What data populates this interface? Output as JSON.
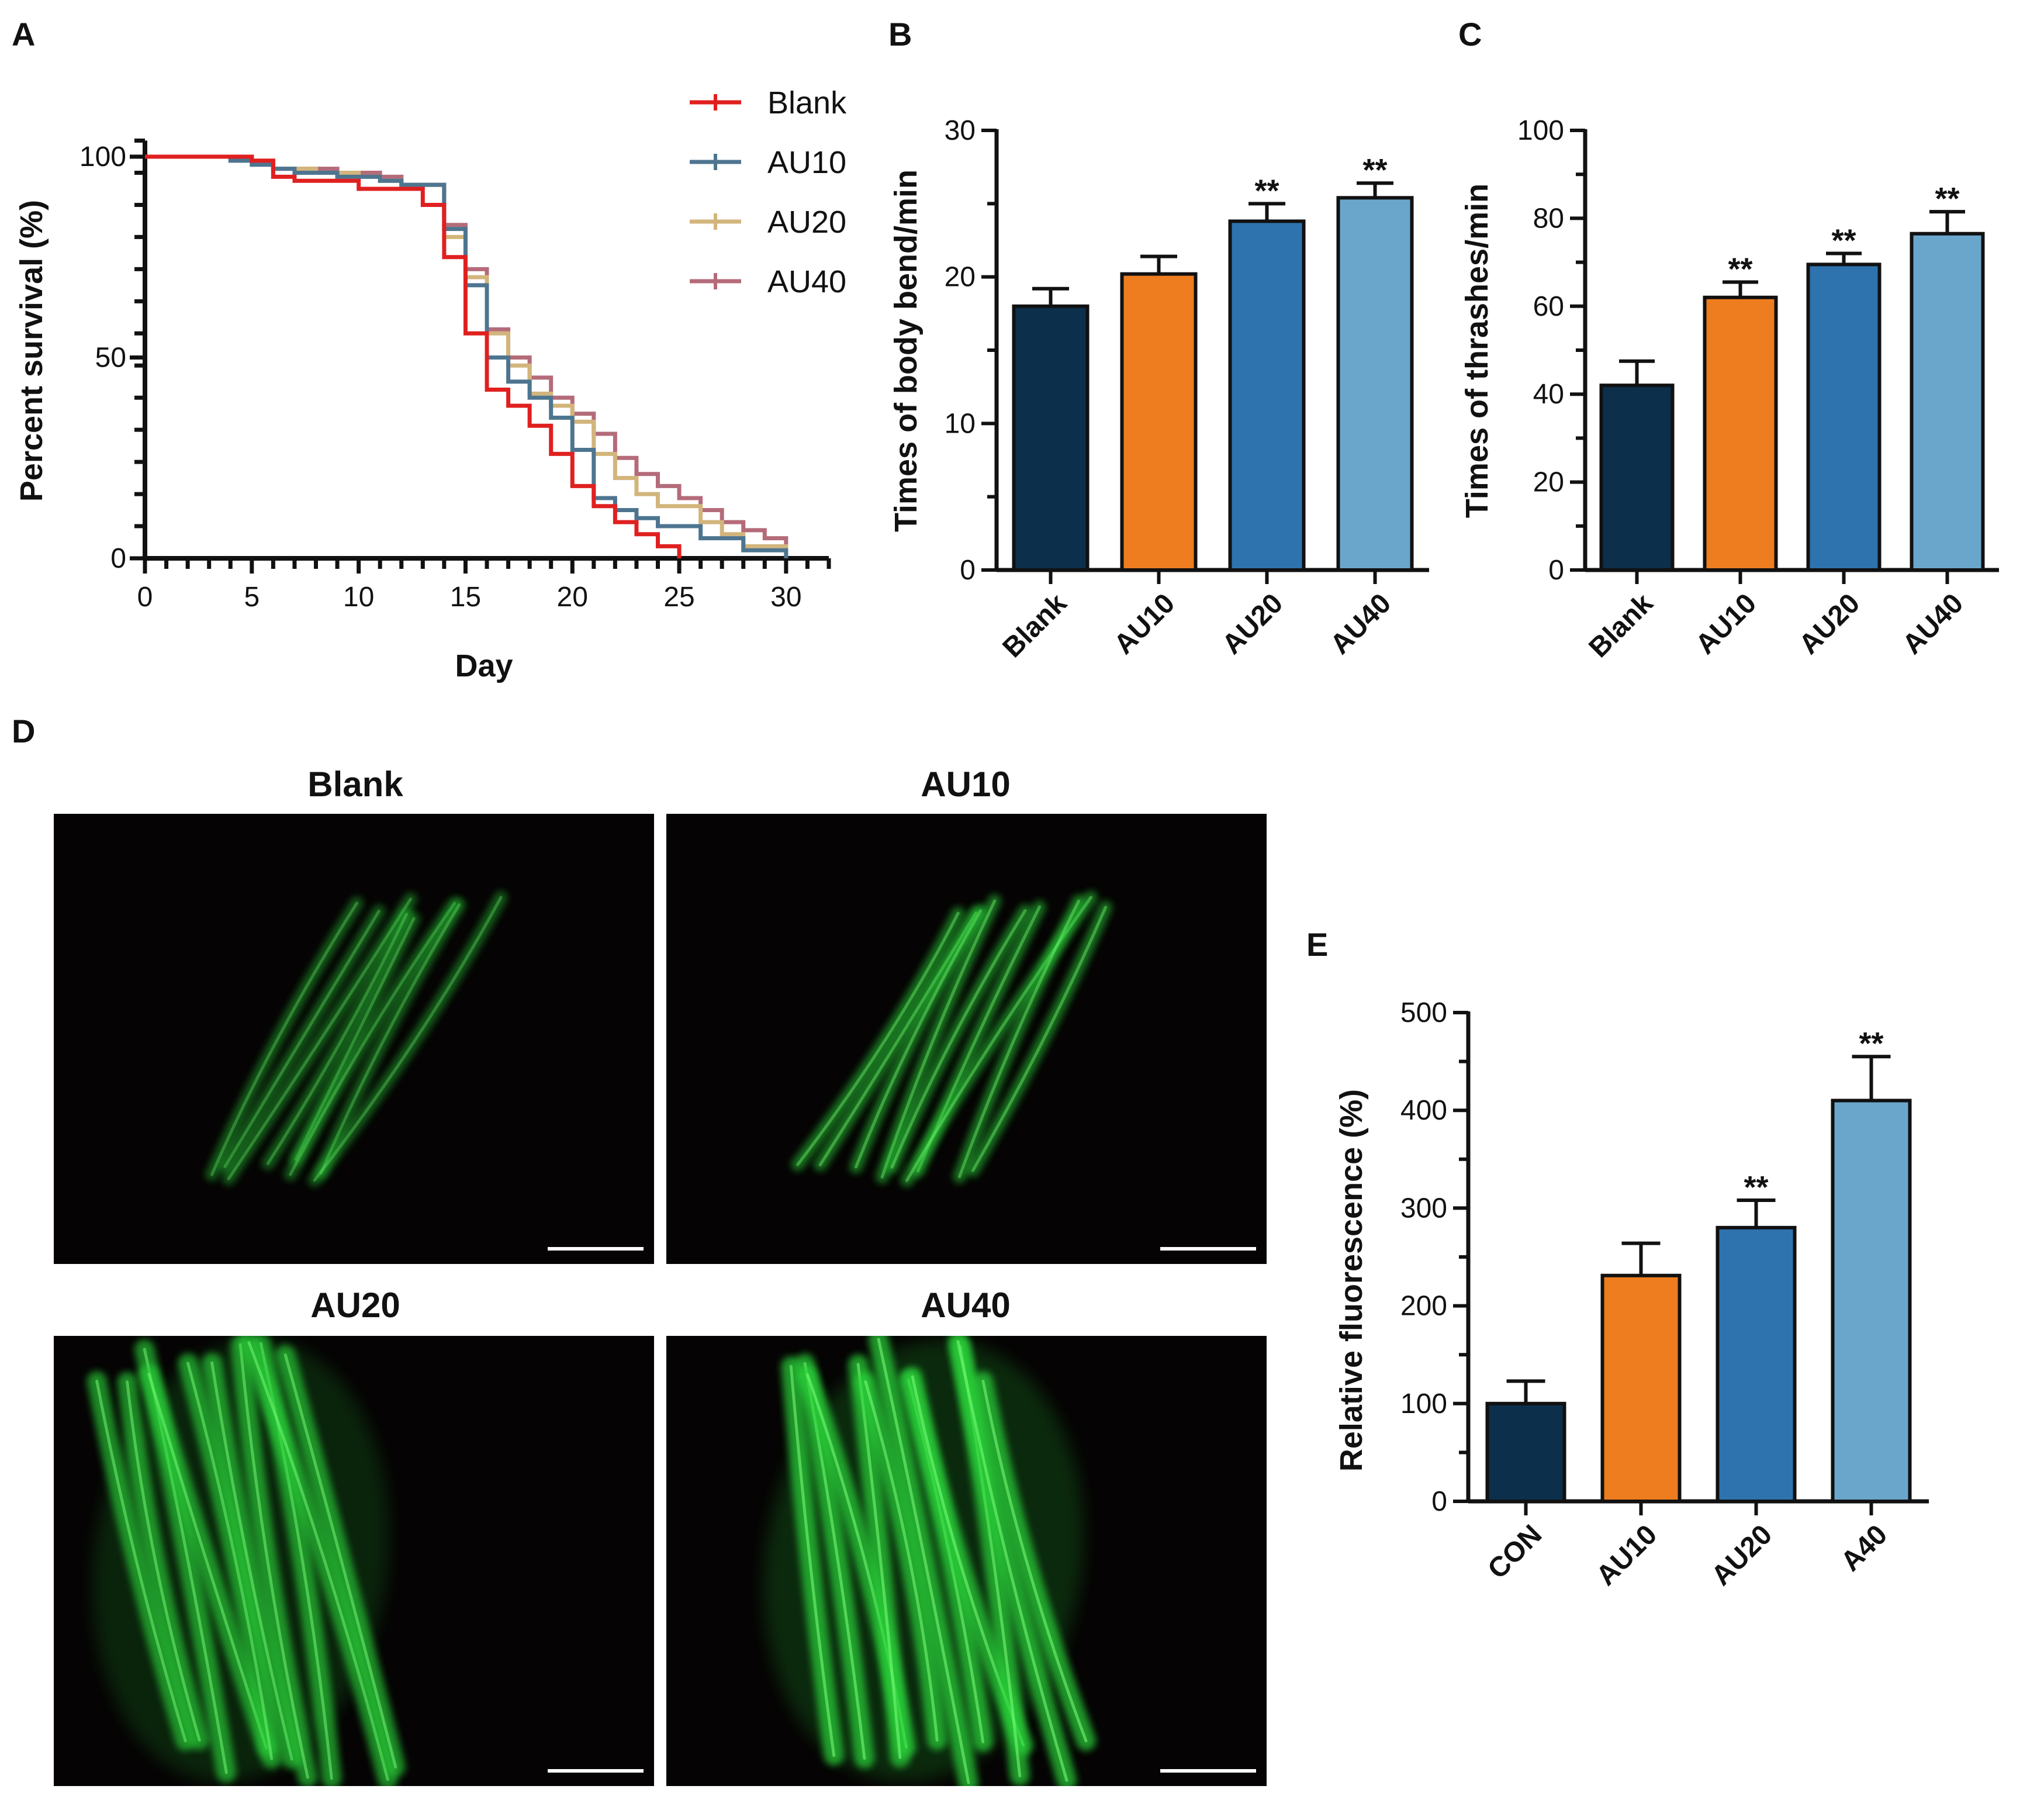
{
  "panels": {
    "a": "A",
    "b": "B",
    "c": "C",
    "d": "D",
    "e": "E"
  },
  "colors": {
    "blank_line": "#e02020",
    "au10_line": "#4e7590",
    "au20_line": "#d2b57c",
    "au40_line": "#b46b7a",
    "bar_dark": "#0c2f4b",
    "bar_orange": "#ee7d1f",
    "bar_mid": "#2e73ae",
    "bar_light": "#6aa6cc",
    "micro_bg": "#050303",
    "worm_green": "#2ad63a"
  },
  "chart_data": [
    {
      "panel": "A",
      "type": "line",
      "step": true,
      "xlabel": "Day",
      "ylabel": "Percent survival (%)",
      "xlim": [
        0,
        32
      ],
      "ylim": [
        0,
        100
      ],
      "xticks": [
        "0",
        "5",
        "10",
        "15",
        "20",
        "25",
        "30"
      ],
      "yticks": [
        "0",
        "50",
        "100"
      ],
      "legend_position": "top-right",
      "series": [
        {
          "name": "Blank",
          "color": "#e02020",
          "x": [
            0,
            5,
            6,
            7,
            10,
            13,
            14,
            15,
            16,
            17,
            18,
            19,
            20,
            21,
            22,
            23,
            24,
            25
          ],
          "y": [
            100,
            99,
            95,
            94,
            92,
            88,
            75,
            56,
            42,
            38,
            33,
            26,
            18,
            13,
            9,
            6,
            3,
            0
          ]
        },
        {
          "name": "AU10",
          "color": "#4e7590",
          "x": [
            0,
            4,
            5,
            6,
            7,
            9,
            10,
            11,
            12,
            14,
            15,
            16,
            17,
            18,
            19,
            20,
            21,
            22,
            23,
            24,
            26,
            28,
            30
          ],
          "y": [
            100,
            99,
            98,
            97,
            96,
            95,
            95,
            94,
            93,
            82,
            68,
            50,
            44,
            40,
            35,
            27,
            15,
            12,
            10,
            8,
            5,
            2,
            0
          ]
        },
        {
          "name": "AU20",
          "color": "#d2b57c",
          "x": [
            0,
            5,
            6,
            8,
            10,
            11,
            12,
            14,
            15,
            16,
            17,
            18,
            19,
            20,
            21,
            22,
            23,
            24,
            26,
            27,
            28,
            30
          ],
          "y": [
            100,
            99,
            97,
            96,
            95,
            94,
            93,
            80,
            70,
            56,
            48,
            41,
            38,
            34,
            26,
            20,
            16,
            13,
            9,
            6,
            3,
            0
          ]
        },
        {
          "name": "AU40",
          "color": "#b46b7a",
          "x": [
            0,
            5,
            6,
            9,
            11,
            12,
            14,
            15,
            16,
            17,
            18,
            19,
            20,
            21,
            22,
            23,
            24,
            25,
            26,
            27,
            28,
            29,
            30
          ],
          "y": [
            100,
            99,
            97,
            96,
            95,
            93,
            83,
            72,
            57,
            50,
            45,
            40,
            36,
            31,
            25,
            21,
            18,
            15,
            12,
            9,
            7,
            5,
            3
          ]
        }
      ]
    },
    {
      "panel": "B",
      "type": "bar",
      "ylabel": "Times of body bend/min",
      "ylim": [
        0,
        30
      ],
      "yticks": [
        "0",
        "10",
        "20",
        "30"
      ],
      "categories": [
        "Blank",
        "AU10",
        "AU20",
        "AU40"
      ],
      "values": [
        18.0,
        20.2,
        23.8,
        25.4
      ],
      "errors": [
        1.2,
        1.2,
        1.2,
        1.0
      ],
      "significance": [
        "",
        "",
        "**",
        "**"
      ]
    },
    {
      "panel": "C",
      "type": "bar",
      "ylabel": "Times of thrashes/min",
      "ylim": [
        0,
        100
      ],
      "yticks": [
        "0",
        "20",
        "40",
        "60",
        "80",
        "100"
      ],
      "categories": [
        "Blank",
        "AU10",
        "AU20",
        "AU40"
      ],
      "values": [
        42,
        62,
        69.5,
        76.5
      ],
      "errors": [
        5.5,
        3.5,
        2.5,
        5.0
      ],
      "significance": [
        "",
        "**",
        "**",
        "**"
      ]
    },
    {
      "panel": "E",
      "type": "bar",
      "ylabel": "Relative fluorescence (%)",
      "ylim": [
        0,
        500
      ],
      "yticks": [
        "0",
        "100",
        "200",
        "300",
        "400",
        "500"
      ],
      "categories": [
        "CON",
        "AU10",
        "AU20",
        "A40"
      ],
      "values": [
        100,
        231,
        280,
        410
      ],
      "errors": [
        23,
        33,
        28,
        45
      ],
      "significance": [
        "",
        "",
        "**",
        "**"
      ]
    }
  ],
  "micrographs": [
    {
      "title": "Blank",
      "intensity": 0.35
    },
    {
      "title": "AU10",
      "intensity": 0.6
    },
    {
      "title": "AU20",
      "intensity": 0.85
    },
    {
      "title": "AU40",
      "intensity": 1.0
    }
  ]
}
